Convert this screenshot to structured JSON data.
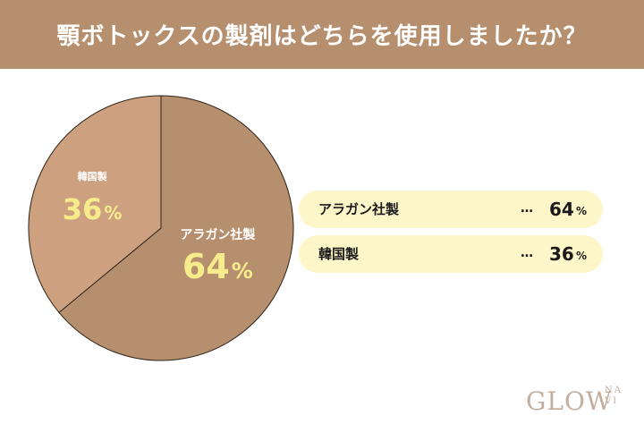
{
  "header": {
    "title": "顎ボトックスの製剤はどちらを使用しましたか？"
  },
  "colors": {
    "header_bg": "#b68f6f",
    "slice_major": "#b68f6f",
    "slice_minor": "#cda180",
    "value_text": "#f7ec8c",
    "legend_bg": "#fdf6c9",
    "logo": "#c3ae9d"
  },
  "chart_data": {
    "type": "pie",
    "title": "顎ボトックスの製剤はどちらを使用しましたか？",
    "categories": [
      "アラガン社製",
      "韓国製"
    ],
    "values": [
      64,
      36
    ],
    "unit": "%",
    "value_labels": [
      "64",
      "36"
    ]
  },
  "legend": {
    "items": [
      {
        "label": "アラガン社製",
        "dots": "…",
        "value": "64",
        "unit": "%"
      },
      {
        "label": "韓国製",
        "dots": "…",
        "value": "36",
        "unit": "%"
      }
    ]
  },
  "logo": {
    "main": "GLOW",
    "sub_top": "NA",
    "sub_bottom": "VI"
  }
}
